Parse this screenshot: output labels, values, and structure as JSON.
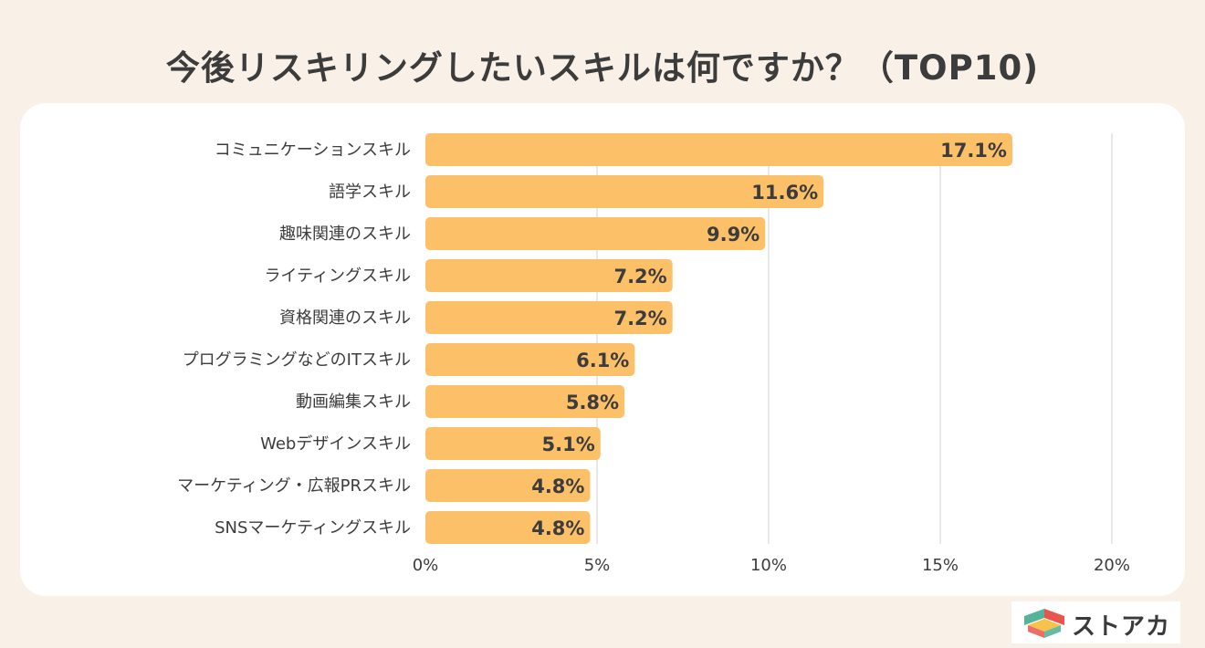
{
  "title": "今後リスキリングしたいスキルは何ですか？（TOP10)",
  "brand": {
    "name": "ストアカ"
  },
  "colors": {
    "background": "#f9f0e7",
    "bar": "#fcc068",
    "grid": "#d9d9d9",
    "text": "#3c3c3c",
    "logo_green": "#56b39a",
    "logo_red": "#e8554e",
    "logo_yellow": "#f6c24a"
  },
  "chart_data": {
    "type": "bar",
    "orientation": "horizontal",
    "title": "今後リスキリングしたいスキルは何ですか？（TOP10)",
    "xlabel": "",
    "ylabel": "",
    "xlim": [
      0,
      20
    ],
    "grid": true,
    "ticks": [
      0,
      5,
      10,
      15,
      20
    ],
    "tick_labels": [
      "0%",
      "5%",
      "10%",
      "15%",
      "20%"
    ],
    "categories": [
      "コミュニケーションスキル",
      "語学スキル",
      "趣味関連のスキル",
      "ライティングスキル",
      "資格関連のスキル",
      "プログラミングなどのITスキル",
      "動画編集スキル",
      "Webデザインスキル",
      "マーケティング・広報PRスキル",
      "SNSマーケティングスキル"
    ],
    "values": [
      17.1,
      11.6,
      9.9,
      7.2,
      7.2,
      6.1,
      5.8,
      5.1,
      4.8,
      4.8
    ],
    "value_labels": [
      "17.1%",
      "11.6%",
      "9.9%",
      "7.2%",
      "7.2%",
      "6.1%",
      "5.8%",
      "5.1%",
      "4.8%",
      "4.8%"
    ]
  }
}
